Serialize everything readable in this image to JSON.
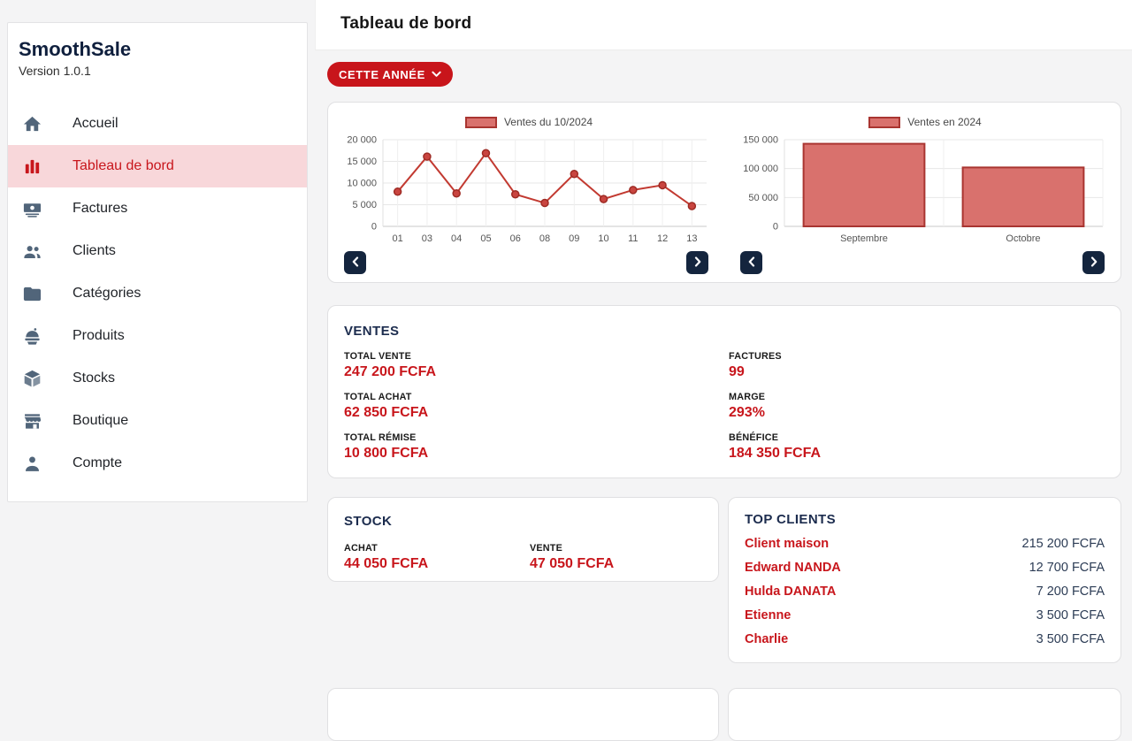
{
  "app": {
    "name": "SmoothSale",
    "version": "Version 1.0.1"
  },
  "header": {
    "title": "Tableau de bord"
  },
  "filter_button": {
    "label": "CETTE ANNÉE"
  },
  "sidebar": {
    "items": [
      {
        "label": "Accueil",
        "icon": "home-icon",
        "active": false
      },
      {
        "label": "Tableau de bord",
        "icon": "bar-chart-icon",
        "active": true
      },
      {
        "label": "Factures",
        "icon": "cash-icon",
        "active": false
      },
      {
        "label": "Clients",
        "icon": "people-icon",
        "active": false
      },
      {
        "label": "Catégories",
        "icon": "folder-icon",
        "active": false
      },
      {
        "label": "Produits",
        "icon": "fast-food-icon",
        "active": false
      },
      {
        "label": "Stocks",
        "icon": "cube-icon",
        "active": false
      },
      {
        "label": "Boutique",
        "icon": "storefront-icon",
        "active": false
      },
      {
        "label": "Compte",
        "icon": "person-icon",
        "active": false
      }
    ]
  },
  "chart_data": [
    {
      "type": "line",
      "legend": "Ventes du 10/2024",
      "categories": [
        "01",
        "03",
        "04",
        "05",
        "06",
        "08",
        "09",
        "10",
        "11",
        "12",
        "13"
      ],
      "values": [
        8000,
        16100,
        7600,
        16900,
        7400,
        5400,
        12100,
        6300,
        8400,
        9500,
        4700
      ],
      "ylim": [
        0,
        20000
      ],
      "ytick_step": 5000,
      "grid": true,
      "legend_position": "top",
      "line_color": "#c23a31",
      "point_fill": "#c94540",
      "point_stroke": "#9e2b24",
      "legend_fill": "#d9716d",
      "legend_stroke": "#a93531"
    },
    {
      "type": "bar",
      "legend": "Ventes en 2024",
      "categories": [
        "Septembre",
        "Octobre"
      ],
      "values": [
        143000,
        102000
      ],
      "ylim": [
        0,
        150000
      ],
      "ytick_step": 50000,
      "grid": true,
      "legend_position": "top",
      "bar_fill": "#d9716d",
      "bar_stroke": "#a93531",
      "legend_fill": "#d9716d",
      "legend_stroke": "#a93531"
    }
  ],
  "ventes": {
    "title": "VENTES",
    "columns": [
      [
        {
          "label": "TOTAL VENTE",
          "value": "247 200 FCFA"
        },
        {
          "label": "TOTAL ACHAT",
          "value": "62 850 FCFA"
        },
        {
          "label": "TOTAL RÉMISE",
          "value": "10 800 FCFA"
        }
      ],
      [
        {
          "label": "FACTURES",
          "value": "99"
        },
        {
          "label": "MARGE",
          "value": "293%"
        },
        {
          "label": "BÉNÉFICE",
          "value": "184 350 FCFA"
        }
      ]
    ]
  },
  "stock": {
    "title": "STOCK",
    "stats": [
      {
        "label": "ACHAT",
        "value": "44 050 FCFA"
      },
      {
        "label": "VENTE",
        "value": "47 050 FCFA"
      }
    ]
  },
  "top_clients": {
    "title": "TOP CLIENTS",
    "rows": [
      {
        "name": "Client maison",
        "amount": "215 200 FCFA"
      },
      {
        "name": "Edward NANDA",
        "amount": "12 700 FCFA"
      },
      {
        "name": "Hulda DANATA",
        "amount": "7 200 FCFA"
      },
      {
        "name": "Etienne",
        "amount": "3 500 FCFA"
      },
      {
        "name": "Charlie",
        "amount": "3 500 FCFA"
      }
    ]
  },
  "colors": {
    "accent_red": "#c8161c",
    "navy": "#14253e",
    "heading_navy": "#1c2c4e",
    "amount_navy": "#2c3c55",
    "active_item_bg": "#f8d7da",
    "page_bg": "#f4f4f5"
  }
}
